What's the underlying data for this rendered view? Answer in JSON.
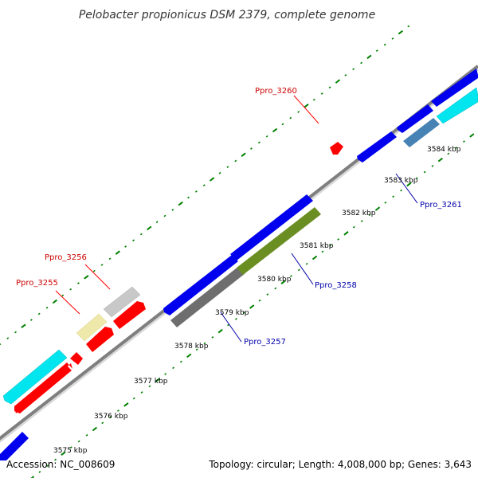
{
  "title": "Pelobacter propionicus DSM 2379, complete genome",
  "footer": {
    "accession": "Accession: NC_008609",
    "summary": "Topology: circular; Length: 4,008,000 bp; Genes: 3,643"
  },
  "scale_labels": [
    "3575 kbp",
    "3576 kbp",
    "3577 kbp",
    "3578 kbp",
    "3579 kbp",
    "3580 kbp",
    "3581 kbp",
    "3582 kbp",
    "3583 kbp",
    "3584 kbp"
  ],
  "gene_labels": [
    {
      "id": "ppro3255",
      "text": "Ppro_3255",
      "color": "#cc0000"
    },
    {
      "id": "ppro3256",
      "text": "Ppro_3256",
      "color": "#cc0000"
    },
    {
      "id": "ppro3257",
      "text": "Ppro_3257",
      "color": "#0000aa"
    },
    {
      "id": "ppro3258",
      "text": "Ppro_3258",
      "color": "#0000aa"
    },
    {
      "id": "ppro3260",
      "text": "Ppro_3260",
      "color": "#cc0000"
    },
    {
      "id": "ppro3261",
      "text": "Ppro_3261",
      "color": "#0000aa"
    }
  ],
  "colors": {
    "backbone": "#808080",
    "forward_gene": "#ff0000",
    "reverse_gene": "#0000ee",
    "cyan_feature": "#00e5ee",
    "pseudo_gene": "#eee8aa",
    "grey_feature": "#c8c8c8",
    "dark_grey_feature": "#6e6e6e",
    "olive_feature": "#6b8e23",
    "steel_feature": "#4682b4",
    "tick_marks": "#008000"
  }
}
